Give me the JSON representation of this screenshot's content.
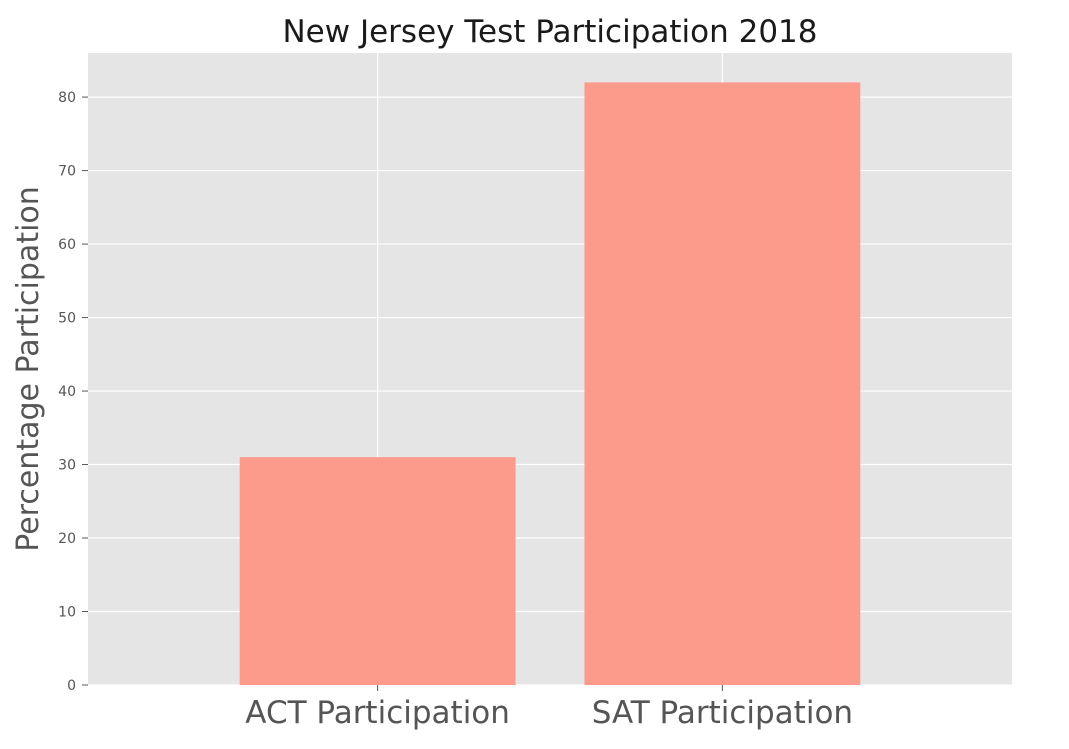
{
  "chart_data": {
    "type": "bar",
    "title": "New Jersey Test Participation 2018",
    "xlabel": "",
    "ylabel": "Percentage Participation",
    "categories": [
      "ACT Participation",
      "SAT Participation"
    ],
    "values": [
      31,
      82
    ],
    "ylim": [
      0,
      86
    ],
    "yticks": [
      0,
      10,
      20,
      30,
      40,
      50,
      60,
      70,
      80
    ],
    "grid": true,
    "legend": "none",
    "colors": {
      "bar": "#fc9b8b",
      "plot_background": "#e5e5e5",
      "grid": "#ffffff"
    }
  }
}
